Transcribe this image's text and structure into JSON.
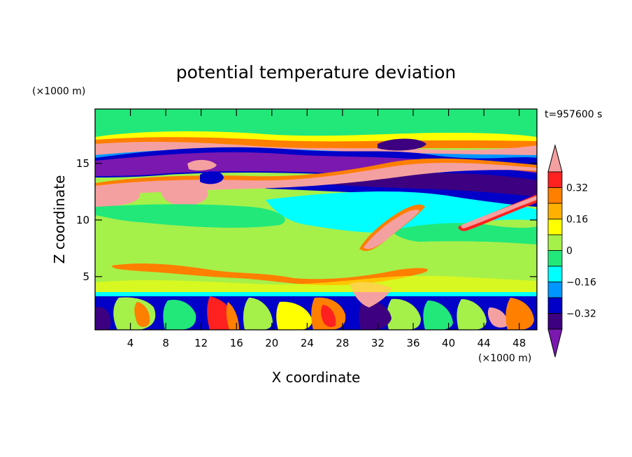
{
  "chart_data": {
    "type": "heatmap",
    "title": "potential temperature deviation",
    "xlabel": "X coordinate",
    "ylabel": "Z coordinate",
    "x_unit": "(×1000 m)",
    "y_unit": "(×1000 m)",
    "time_label": "t=957600 s",
    "xlim": [
      0,
      50
    ],
    "ylim": [
      0.3,
      19.8
    ],
    "x_ticks": [
      "4",
      "8",
      "12",
      "16",
      "20",
      "24",
      "28",
      "32",
      "36",
      "40",
      "44",
      "48"
    ],
    "y_ticks": [
      "5",
      "10",
      "15"
    ],
    "colorbar": {
      "tick_labels": [
        "0.32",
        "0.16",
        "0",
        "−0.16",
        "−0.32"
      ],
      "levels_high_to_low": [
        ">0.40",
        "0.32..0.40",
        "0.24..0.32",
        "0.16..0.24",
        "0.08..0.16",
        "0..0.08",
        "-0.08..0",
        "-0.16..-0.08",
        "-0.24..-0.16",
        "-0.32..-0.24",
        "-0.40..-0.32",
        "<-0.40"
      ],
      "colors_high_to_low": [
        "#f5a0a0",
        "#ff2020",
        "#ff7f00",
        "#ffb000",
        "#ffff00",
        "#a6f04a",
        "#22e87a",
        "#00ffff",
        "#0096ff",
        "#0000c8",
        "#3c0080",
        "#7a18b0"
      ]
    },
    "fields": {
      "background_level": "0..0.08",
      "bands": [
        {
          "z_range": [
            17,
            19.8
          ],
          "dominant": "-0.08..0"
        },
        {
          "z_range": [
            15.5,
            17
          ],
          "dominant": ">0.40"
        },
        {
          "z_range": [
            13.5,
            15.5
          ],
          "dominant": "<-0.40"
        },
        {
          "z_range": [
            11,
            13.5
          ],
          "dominant": ">0.40"
        },
        {
          "z_range": [
            4,
            11
          ],
          "dominant": "0..0.08"
        },
        {
          "z_range": [
            0.3,
            3.5
          ],
          "dominant": "mixed convective cells"
        }
      ]
    }
  }
}
